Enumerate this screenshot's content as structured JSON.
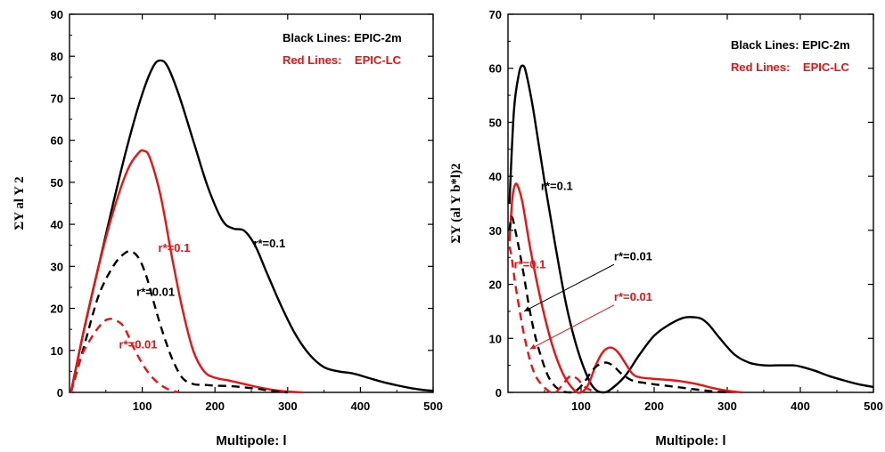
{
  "colors": {
    "black": "#000000",
    "red": "#ee1111"
  },
  "chart_data": [
    {
      "type": "line",
      "xlabel": "Multipole: l",
      "ylabel": "ΣY al Y 2",
      "xlim": [
        0,
        500
      ],
      "ylim": [
        0,
        90
      ],
      "xticks": [
        100,
        200,
        300,
        400,
        500
      ],
      "yticks": [
        0,
        10,
        20,
        30,
        40,
        50,
        60,
        70,
        80,
        90
      ],
      "legend": {
        "position": "top-right",
        "black": "Black Lines: EPIC-2m",
        "red": "Red Lines:    EPIC-LC"
      },
      "series": [
        {
          "color": "black",
          "dash": false,
          "x": [
            2,
            20,
            40,
            60,
            80,
            100,
            115,
            125,
            135,
            150,
            170,
            190,
            210,
            225,
            240,
            255,
            270,
            290,
            310,
            330,
            350,
            370,
            390,
            410,
            430,
            450,
            470,
            490,
            500
          ],
          "y": [
            0,
            15,
            30,
            45,
            59,
            71,
            77.5,
            79,
            77.5,
            71,
            60,
            49,
            41,
            39,
            38.5,
            35,
            29,
            21,
            14,
            9,
            6,
            5,
            4.5,
            3.5,
            2.5,
            1.7,
            1.0,
            0.5,
            0.4
          ]
        },
        {
          "color": "red",
          "dash": false,
          "x": [
            2,
            20,
            40,
            60,
            80,
            95,
            102,
            110,
            125,
            140,
            155,
            170,
            185,
            200,
            220,
            240,
            260,
            280,
            300,
            320
          ],
          "y": [
            0,
            15,
            30,
            43,
            53,
            57,
            57.5,
            56,
            47,
            33,
            20,
            10,
            5,
            3.5,
            2.8,
            2,
            1.2,
            0.6,
            0.2,
            0
          ]
        },
        {
          "color": "black",
          "dash": true,
          "x": [
            2,
            20,
            40,
            60,
            75,
            85,
            95,
            105,
            115,
            125,
            140,
            155,
            170,
            185,
            200,
            220,
            240,
            260,
            280,
            300
          ],
          "y": [
            0,
            11,
            23,
            30,
            33,
            33.5,
            32,
            28,
            22,
            16,
            8.5,
            3.5,
            2,
            1.8,
            1.6,
            1.5,
            1.2,
            0.8,
            0.3,
            0
          ]
        },
        {
          "color": "red",
          "dash": true,
          "x": [
            2,
            15,
            30,
            45,
            55,
            65,
            75,
            90,
            105,
            120,
            135,
            150
          ],
          "y": [
            0,
            8,
            13,
            16.5,
            17.5,
            17,
            15.5,
            10,
            5.5,
            2.5,
            0.8,
            0
          ]
        }
      ],
      "annotations": [
        {
          "text": "r*=0.1",
          "color": "red",
          "x": 122,
          "y": 33.5
        },
        {
          "text": "r*=0.1",
          "color": "black",
          "x": 253,
          "y": 34.5
        },
        {
          "text": "r*=0.01",
          "color": "black",
          "x": 92,
          "y": 23
        },
        {
          "text": "r*=0.01",
          "color": "red",
          "x": 68,
          "y": 10.5
        }
      ]
    },
    {
      "type": "line",
      "xlabel": "Multipole: l",
      "ylabel": "ΣY (al Y b*l)2",
      "xlim": [
        0,
        500
      ],
      "ylim": [
        0,
        70
      ],
      "xticks": [
        100,
        200,
        300,
        400,
        500
      ],
      "yticks": [
        0,
        10,
        20,
        30,
        40,
        50,
        60,
        70
      ],
      "legend": {
        "position": "top-right",
        "black": "Black Lines: EPIC-2m",
        "red": "Red Lines:    EPIC-LC"
      },
      "series": [
        {
          "color": "black",
          "dash": false,
          "x": [
            2,
            8,
            15,
            20,
            25,
            35,
            50,
            65,
            80,
            95,
            110,
            120,
            130,
            140,
            160,
            180,
            200,
            220,
            240,
            255,
            265,
            275,
            290,
            310,
            330,
            350,
            370,
            390,
            400,
            420,
            440,
            460,
            480,
            500
          ],
          "y": [
            35,
            52,
            59,
            60.5,
            59,
            52,
            39,
            27,
            16,
            8,
            2.5,
            0.5,
            0,
            0.5,
            3,
            7,
            10.5,
            12.5,
            13.8,
            13.9,
            13.6,
            12.5,
            10,
            7,
            5.5,
            5,
            5,
            5,
            4.8,
            4,
            3,
            2.2,
            1.5,
            1.0
          ]
        },
        {
          "color": "red",
          "dash": false,
          "x": [
            2,
            6,
            10,
            14,
            20,
            30,
            45,
            60,
            75,
            90,
            100,
            110,
            120,
            130,
            140,
            150,
            160,
            170,
            180,
            200,
            220,
            240,
            260,
            280,
            300,
            320
          ],
          "y": [
            28,
            36,
            38.5,
            38,
            35,
            27,
            17,
            9,
            3.5,
            0.5,
            0,
            1.5,
            5,
            7.5,
            8.3,
            7.5,
            5.5,
            3.5,
            2.8,
            2.5,
            2.3,
            2,
            1.5,
            0.8,
            0.3,
            0
          ]
        },
        {
          "color": "black",
          "dash": true,
          "x": [
            2,
            5,
            10,
            20,
            30,
            40,
            55,
            70,
            85,
            95,
            105,
            115,
            125,
            135,
            145,
            155,
            170,
            185,
            200,
            230,
            260,
            280,
            300
          ],
          "y": [
            30,
            32.5,
            30,
            23,
            15,
            9,
            3,
            0.5,
            0,
            0.5,
            2,
            4,
            5.2,
            5.5,
            4.8,
            3.5,
            2.2,
            1.8,
            1.5,
            1,
            0.5,
            0.2,
            0
          ]
        },
        {
          "color": "red",
          "dash": true,
          "x": [
            2,
            5,
            10,
            20,
            30,
            40,
            55,
            65,
            75,
            85,
            95,
            105,
            120
          ],
          "y": [
            27,
            25,
            20,
            12,
            6,
            2.5,
            0.3,
            0,
            1.5,
            3,
            2.5,
            1,
            0
          ]
        }
      ],
      "annotations": [
        {
          "text": "r*=0.1",
          "color": "black",
          "x": 45,
          "y": 37.5
        },
        {
          "text": "r*=0.01",
          "color": "black",
          "x": 145,
          "y": 24.5,
          "arrow_to": [
            22,
            15
          ]
        },
        {
          "text": "r*=0.1",
          "color": "red",
          "x": 8,
          "y": 23
        },
        {
          "text": "r*=0.01",
          "color": "red",
          "x": 145,
          "y": 17,
          "arrow_to": [
            30,
            8
          ]
        }
      ]
    }
  ]
}
